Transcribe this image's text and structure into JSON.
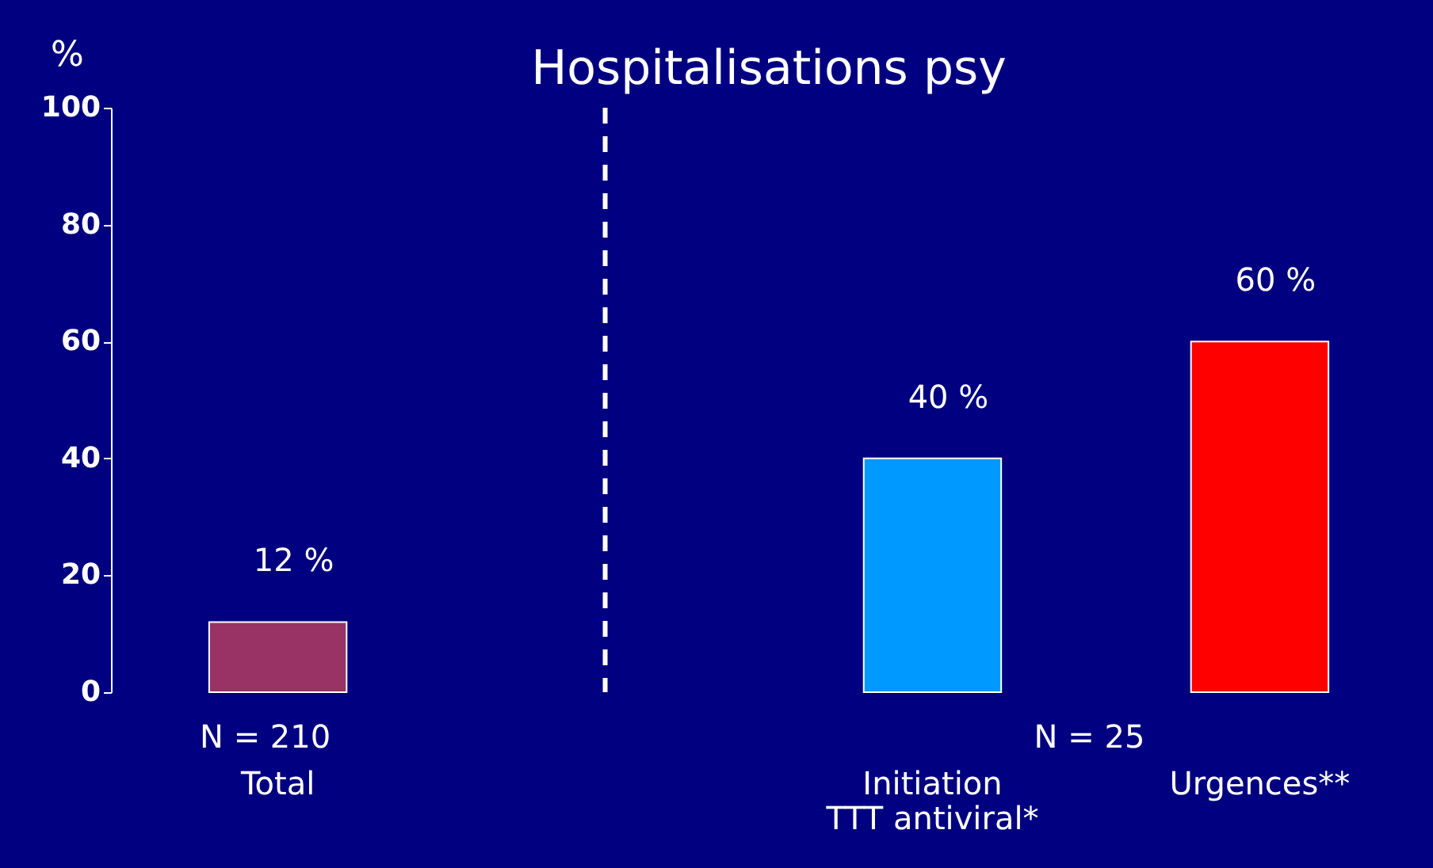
{
  "chart_data": {
    "type": "bar",
    "title": "Hospitalisations psy",
    "ylabel": "%",
    "categories": [
      "Total",
      null,
      "Initiation\nTTT antiviral*",
      "Urgences**"
    ],
    "values": [
      12,
      null,
      40,
      60
    ],
    "colors": [
      "#993366",
      "#000080",
      "#0099ff",
      "#ff0000"
    ],
    "value_labels": [
      "12 %",
      null,
      "40 %",
      "60 %"
    ],
    "ylim": [
      0,
      100
    ],
    "yticks": [
      0,
      20,
      40,
      60,
      80,
      100
    ],
    "ref_lines": [
      {
        "axis": "x",
        "value": null,
        "color": "#ffffff",
        "line_style": "dashed"
      }
    ],
    "annotations": [
      "N = 210",
      "N = 25"
    ]
  }
}
